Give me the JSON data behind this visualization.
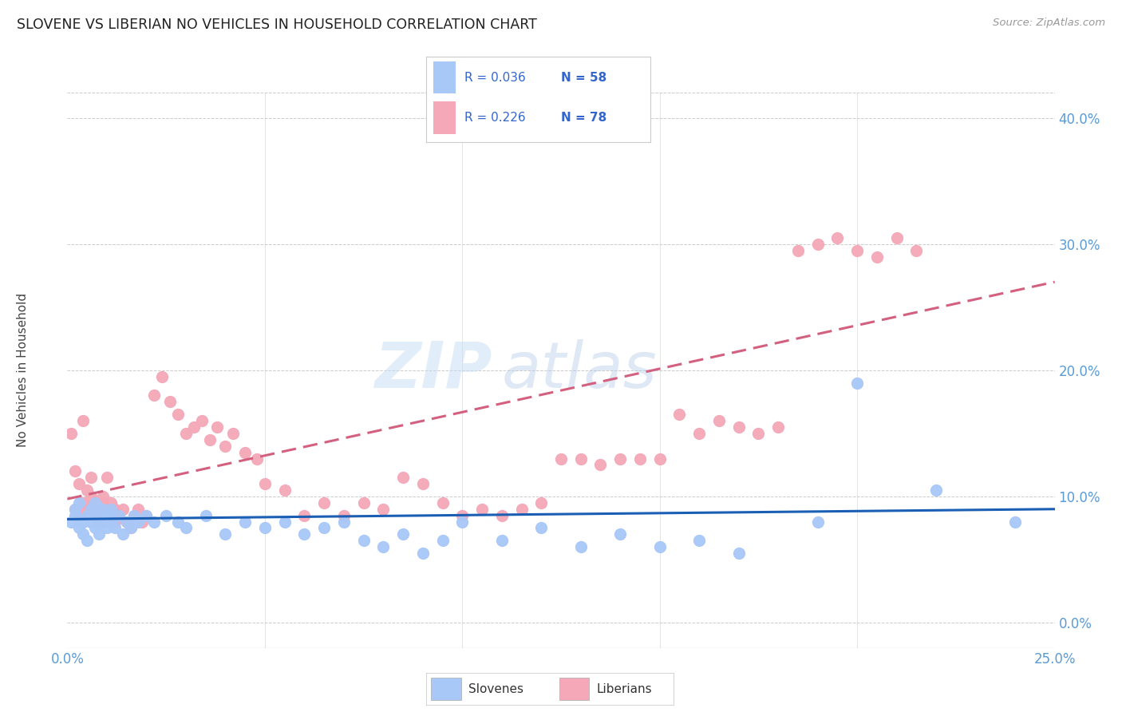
{
  "title": "SLOVENE VS LIBERIAN NO VEHICLES IN HOUSEHOLD CORRELATION CHART",
  "source": "Source: ZipAtlas.com",
  "ylabel": "No Vehicles in Household",
  "legend_slovenes_R": "0.036",
  "legend_slovenes_N": "58",
  "legend_liberians_R": "0.226",
  "legend_liberians_N": "78",
  "slovene_color": "#a8c8f8",
  "liberian_color": "#f4a8b8",
  "slovene_line_color": "#1a5fb4",
  "liberian_line_color": "#d46080",
  "background_color": "#ffffff",
  "watermark_zip": "ZIP",
  "watermark_atlas": "atlas",
  "xmin": 0.0,
  "xmax": 0.25,
  "ymin": -0.02,
  "ymax": 0.42,
  "slovene_x": [
    0.001,
    0.002,
    0.002,
    0.003,
    0.003,
    0.004,
    0.004,
    0.005,
    0.005,
    0.006,
    0.006,
    0.007,
    0.007,
    0.008,
    0.008,
    0.009,
    0.009,
    0.01,
    0.01,
    0.011,
    0.011,
    0.012,
    0.013,
    0.014,
    0.015,
    0.016,
    0.017,
    0.018,
    0.02,
    0.022,
    0.025,
    0.028,
    0.03,
    0.035,
    0.04,
    0.045,
    0.05,
    0.055,
    0.06,
    0.065,
    0.07,
    0.075,
    0.08,
    0.085,
    0.09,
    0.095,
    0.1,
    0.11,
    0.12,
    0.13,
    0.14,
    0.15,
    0.16,
    0.17,
    0.19,
    0.2,
    0.22,
    0.24
  ],
  "slovene_y": [
    0.08,
    0.085,
    0.09,
    0.075,
    0.095,
    0.08,
    0.07,
    0.085,
    0.065,
    0.09,
    0.08,
    0.095,
    0.075,
    0.085,
    0.07,
    0.09,
    0.08,
    0.075,
    0.085,
    0.08,
    0.09,
    0.075,
    0.085,
    0.07,
    0.08,
    0.075,
    0.085,
    0.08,
    0.085,
    0.08,
    0.085,
    0.08,
    0.075,
    0.085,
    0.07,
    0.08,
    0.075,
    0.08,
    0.07,
    0.075,
    0.08,
    0.065,
    0.06,
    0.07,
    0.055,
    0.065,
    0.08,
    0.065,
    0.075,
    0.06,
    0.07,
    0.06,
    0.065,
    0.055,
    0.08,
    0.19,
    0.105,
    0.08
  ],
  "liberian_x": [
    0.001,
    0.002,
    0.002,
    0.003,
    0.003,
    0.004,
    0.004,
    0.005,
    0.005,
    0.006,
    0.006,
    0.007,
    0.007,
    0.008,
    0.008,
    0.009,
    0.009,
    0.01,
    0.01,
    0.011,
    0.011,
    0.012,
    0.012,
    0.013,
    0.014,
    0.015,
    0.016,
    0.017,
    0.018,
    0.019,
    0.02,
    0.022,
    0.024,
    0.026,
    0.028,
    0.03,
    0.032,
    0.034,
    0.036,
    0.038,
    0.04,
    0.042,
    0.045,
    0.048,
    0.05,
    0.055,
    0.06,
    0.065,
    0.07,
    0.075,
    0.08,
    0.085,
    0.09,
    0.095,
    0.1,
    0.105,
    0.11,
    0.115,
    0.12,
    0.125,
    0.13,
    0.135,
    0.14,
    0.145,
    0.15,
    0.155,
    0.16,
    0.165,
    0.17,
    0.175,
    0.18,
    0.185,
    0.19,
    0.195,
    0.2,
    0.205,
    0.21,
    0.215
  ],
  "liberian_y": [
    0.15,
    0.09,
    0.12,
    0.085,
    0.11,
    0.095,
    0.16,
    0.09,
    0.105,
    0.1,
    0.115,
    0.095,
    0.085,
    0.09,
    0.08,
    0.1,
    0.095,
    0.09,
    0.115,
    0.085,
    0.095,
    0.09,
    0.08,
    0.085,
    0.09,
    0.08,
    0.075,
    0.085,
    0.09,
    0.08,
    0.085,
    0.18,
    0.195,
    0.175,
    0.165,
    0.15,
    0.155,
    0.16,
    0.145,
    0.155,
    0.14,
    0.15,
    0.135,
    0.13,
    0.11,
    0.105,
    0.085,
    0.095,
    0.085,
    0.095,
    0.09,
    0.115,
    0.11,
    0.095,
    0.085,
    0.09,
    0.085,
    0.09,
    0.095,
    0.13,
    0.13,
    0.125,
    0.13,
    0.13,
    0.13,
    0.165,
    0.15,
    0.16,
    0.155,
    0.15,
    0.155,
    0.295,
    0.3,
    0.305,
    0.295,
    0.29,
    0.305,
    0.295
  ],
  "slovene_trend_x": [
    0.0,
    0.25
  ],
  "slovene_trend_y": [
    0.082,
    0.09
  ],
  "liberian_trend_x": [
    0.0,
    0.25
  ],
  "liberian_trend_y": [
    0.098,
    0.27
  ]
}
